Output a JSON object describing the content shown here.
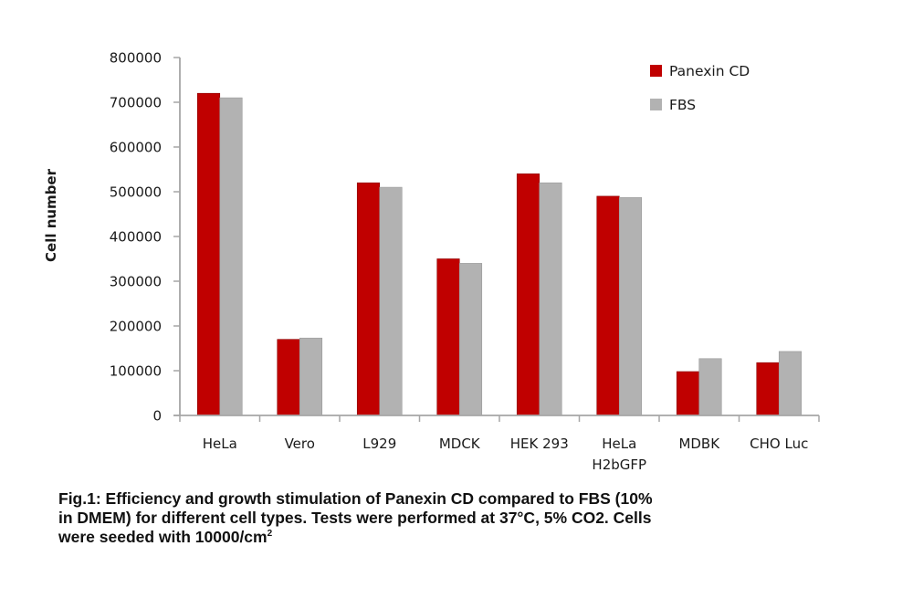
{
  "chart_data": {
    "type": "bar",
    "title": "",
    "xlabel": "",
    "ylabel": "Cell number",
    "ylim": [
      0,
      800000
    ],
    "yticks": [
      0,
      100000,
      200000,
      300000,
      400000,
      500000,
      600000,
      700000,
      800000
    ],
    "ytick_labels": [
      "0",
      "100000",
      "200000",
      "300000",
      "400000",
      "500000",
      "600000",
      "700000",
      "800000"
    ],
    "grid": false,
    "legend_position": "top-right",
    "categories": [
      [
        "HeLa"
      ],
      [
        "Vero"
      ],
      [
        "L929"
      ],
      [
        "MDCK"
      ],
      [
        "HEK 293"
      ],
      [
        "HeLa",
        "H2bGFP"
      ],
      [
        "MDBK"
      ],
      [
        "CHO Luc"
      ]
    ],
    "series": [
      {
        "name": "Panexin CD",
        "color": "#c00000",
        "values": [
          720000,
          170000,
          520000,
          350000,
          540000,
          490000,
          98000,
          118000
        ]
      },
      {
        "name": "FBS",
        "color": "#b2b2b2",
        "values": [
          710000,
          173000,
          510000,
          340000,
          520000,
          487000,
          127000,
          143000
        ]
      }
    ]
  },
  "caption": {
    "line1": "Fig.1: Efficiency and growth stimulation of Panexin CD compared to FBS (10%",
    "line2": "in DMEM) for different cell types. Tests were performed at 37°C, 5% CO2. Cells",
    "line3": "were seeded with 10000/cm",
    "line3_sup": "2"
  },
  "colors": {
    "axis": "#a6a6a6"
  }
}
